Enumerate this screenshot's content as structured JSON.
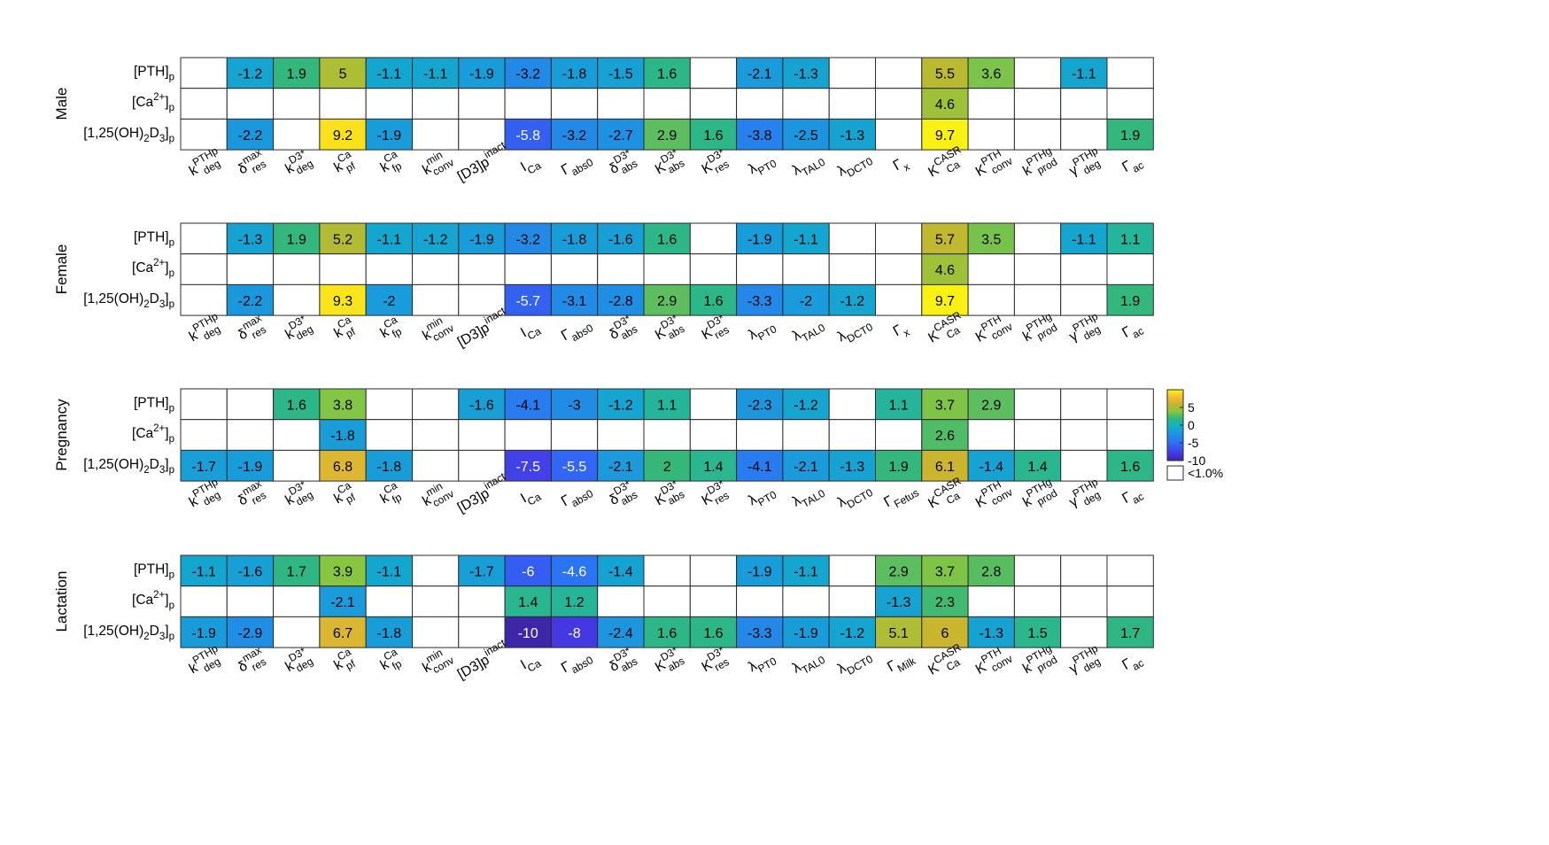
{
  "chart_data": {
    "type": "heatmap",
    "row_labels": [
      "[PTH]p",
      "[Ca2+]p",
      "[1,25(OH)2D3]p"
    ],
    "colorbar": {
      "ticks": [
        5,
        0,
        -5,
        -10
      ],
      "min": -10,
      "max": 10,
      "empty_label": "<1.0%"
    },
    "colors": {
      "max": "#f9fb0e",
      "mid": "#35b779",
      "min": "#3e26a8",
      "empty": "#ffffff"
    },
    "panels": [
      {
        "name": "Male",
        "columns": [
          "k_deg^PTHp",
          "δ_res^max",
          "k_deg^D3*",
          "k_pf^Ca",
          "k_fp^Ca",
          "k_conv^min",
          "[D3]p^inact",
          "I_Ca",
          "Γ_abs0",
          "δ_abs^D3*",
          "K_abs^D3*",
          "K_res^D3*",
          "λ_PT0",
          "λ_TAL0",
          "λ_DCT0",
          "Γ_x",
          "K_Ca^CASR",
          "K_conv^PTH",
          "k_prod^PTHg",
          "γ_deg^PTHp",
          "Γ_ac"
        ],
        "values": [
          [
            null,
            -1.2,
            1.9,
            5,
            -1.1,
            -1.1,
            -1.9,
            -3.2,
            -1.8,
            -1.5,
            1.6,
            null,
            -2.1,
            -1.3,
            null,
            null,
            5.5,
            3.6,
            null,
            -1.1,
            null
          ],
          [
            null,
            null,
            null,
            null,
            null,
            null,
            null,
            null,
            null,
            null,
            null,
            null,
            null,
            null,
            null,
            null,
            4.6,
            null,
            null,
            null,
            null
          ],
          [
            null,
            -2.2,
            null,
            9.2,
            -1.9,
            null,
            null,
            -5.8,
            -3.2,
            -2.7,
            2.9,
            1.6,
            -3.8,
            -2.5,
            -1.3,
            null,
            9.7,
            null,
            null,
            null,
            1.9
          ]
        ]
      },
      {
        "name": "Female",
        "columns": [
          "k_deg^PTHp",
          "δ_res^max",
          "k_deg^D3*",
          "k_pf^Ca",
          "k_fp^Ca",
          "k_conv^min",
          "[D3]p^inact",
          "I_Ca",
          "Γ_abs0",
          "δ_abs^D3*",
          "K_abs^D3*",
          "K_res^D3*",
          "λ_PT0",
          "λ_TAL0",
          "λ_DCT0",
          "Γ_x",
          "K_Ca^CASR",
          "K_conv^PTH",
          "k_prod^PTHg",
          "γ_deg^PTHp",
          "Γ_ac"
        ],
        "values": [
          [
            null,
            -1.3,
            1.9,
            5.2,
            -1.1,
            -1.2,
            -1.9,
            -3.2,
            -1.8,
            -1.6,
            1.6,
            null,
            -1.9,
            -1.1,
            null,
            null,
            5.7,
            3.5,
            null,
            -1.1,
            1.1
          ],
          [
            null,
            null,
            null,
            null,
            null,
            null,
            null,
            null,
            null,
            null,
            null,
            null,
            null,
            null,
            null,
            null,
            4.6,
            null,
            null,
            null,
            null
          ],
          [
            null,
            -2.2,
            null,
            9.3,
            -2,
            null,
            null,
            -5.7,
            -3.1,
            -2.8,
            2.9,
            1.6,
            -3.3,
            -2,
            -1.2,
            null,
            9.7,
            null,
            null,
            null,
            1.9
          ]
        ]
      },
      {
        "name": "Pregnancy",
        "columns": [
          "k_deg^PTHp",
          "δ_res^max",
          "k_deg^D3*",
          "k_pf^Ca",
          "k_fp^Ca",
          "k_conv^min",
          "[D3]p^inact",
          "I_Ca",
          "Γ_abs0",
          "δ_abs^D3*",
          "K_abs^D3*",
          "K_res^D3*",
          "λ_PT0",
          "λ_TAL0",
          "λ_DCT0",
          "Γ_Fetus",
          "K_Ca^CASR",
          "K_conv^PTH",
          "k_prod^PTHg",
          "γ_deg^PTHp",
          "Γ_ac"
        ],
        "values": [
          [
            null,
            null,
            1.6,
            3.8,
            null,
            null,
            -1.6,
            -4.1,
            -3,
            -1.2,
            1.1,
            null,
            -2.3,
            -1.2,
            null,
            1.1,
            3.7,
            2.9,
            null,
            null,
            null
          ],
          [
            null,
            null,
            null,
            -1.8,
            null,
            null,
            null,
            null,
            null,
            null,
            null,
            null,
            null,
            null,
            null,
            null,
            2.6,
            null,
            null,
            null,
            null
          ],
          [
            -1.7,
            -1.9,
            null,
            6.8,
            -1.8,
            null,
            null,
            -7.5,
            -5.5,
            -2.1,
            2,
            1.4,
            -4.1,
            -2.1,
            -1.3,
            1.9,
            6.1,
            -1.4,
            1.4,
            null,
            1.6
          ]
        ]
      },
      {
        "name": "Lactation",
        "columns": [
          "k_deg^PTHp",
          "δ_res^max",
          "k_deg^D3*",
          "k_pf^Ca",
          "k_fp^Ca",
          "k_conv^min",
          "[D3]p^inact",
          "I_Ca",
          "Γ_abs0",
          "δ_abs^D3*",
          "K_abs^D3*",
          "K_res^D3*",
          "λ_PT0",
          "λ_TAL0",
          "λ_DCT0",
          "Γ_Milk",
          "K_Ca^CASR",
          "K_conv^PTH",
          "k_prod^PTHg",
          "γ_deg^PTHp",
          "Γ_ac"
        ],
        "values": [
          [
            -1.1,
            -1.6,
            1.7,
            3.9,
            -1.1,
            null,
            -1.7,
            -6,
            -4.6,
            -1.4,
            null,
            null,
            -1.9,
            -1.1,
            null,
            2.9,
            3.7,
            2.8,
            null,
            null,
            null
          ],
          [
            null,
            null,
            null,
            -2.1,
            null,
            null,
            null,
            1.4,
            1.2,
            null,
            null,
            null,
            null,
            null,
            null,
            -1.3,
            2.3,
            null,
            null,
            null,
            null
          ],
          [
            -1.9,
            -2.9,
            null,
            6.7,
            -1.8,
            null,
            null,
            -10,
            -8,
            -2.4,
            1.6,
            1.6,
            -3.3,
            -1.9,
            -1.2,
            5.1,
            6,
            -1.3,
            1.5,
            null,
            1.7
          ]
        ]
      }
    ]
  }
}
